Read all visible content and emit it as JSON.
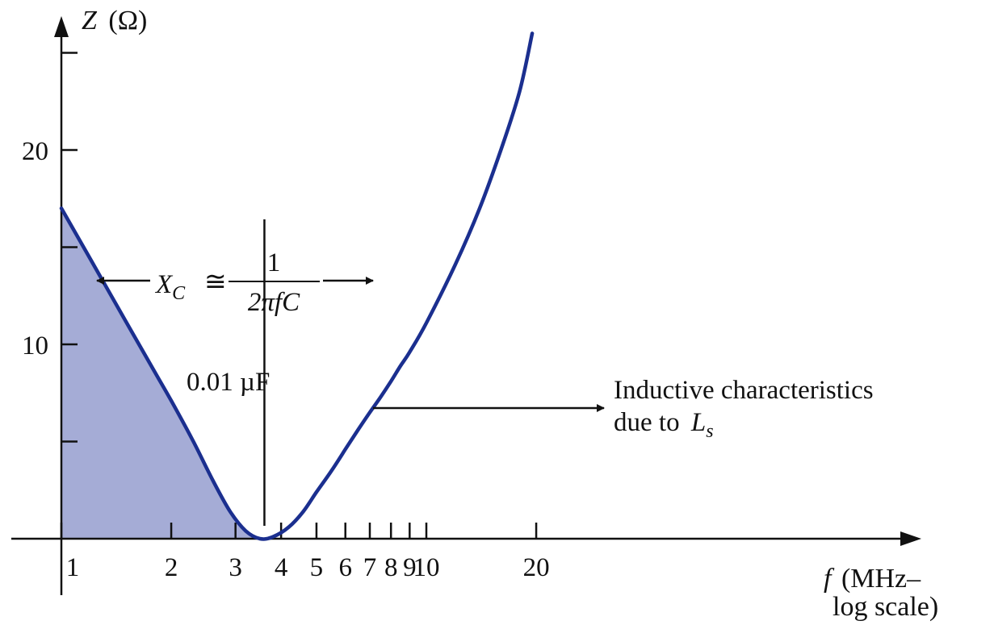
{
  "chart_data": {
    "type": "line",
    "title": "",
    "xlabel": "f (MHz–log scale)",
    "xlabel_parts": {
      "symbol": "f",
      "rest_line1": "(MHz–",
      "rest_line2": "log scale)"
    },
    "ylabel": "Z (Ω)",
    "ylabel_parts": {
      "symbol": "Z",
      "unit": "(Ω)"
    },
    "x_scale": "log",
    "xlim": [
      1,
      20
    ],
    "ylim": [
      0,
      26
    ],
    "x_ticks": [
      1,
      2,
      3,
      4,
      5,
      6,
      7,
      8,
      9,
      10,
      20
    ],
    "x_tick_labels": [
      "1",
      "2",
      "3",
      "4",
      "5",
      "6",
      "7",
      "8",
      "9",
      "10",
      "20"
    ],
    "y_ticks": [
      5,
      10,
      15,
      20,
      25
    ],
    "y_tick_labels": [
      "10",
      "20"
    ],
    "y_labeled_ticks": [
      10,
      20
    ],
    "grid": false,
    "series": [
      {
        "name": "0.01 µF",
        "color": "#1b2f8f",
        "x": [
          1.0,
          1.2,
          1.5,
          1.8,
          2.0,
          2.3,
          2.6,
          2.9,
          3.2,
          3.5,
          3.8,
          4.2,
          4.6,
          5.0,
          5.5,
          6.0,
          6.5,
          7.0,
          7.5,
          8.0,
          8.5,
          9.0,
          10,
          12,
          14,
          16,
          18,
          19.5
        ],
        "y": [
          17.0,
          14.4,
          11.2,
          8.6,
          7.1,
          5.0,
          3.0,
          1.4,
          0.4,
          0.0,
          0.1,
          0.6,
          1.4,
          2.4,
          3.5,
          4.6,
          5.6,
          6.5,
          7.3,
          8.1,
          8.9,
          9.6,
          11.1,
          14.1,
          17.0,
          20.0,
          23.0,
          26.0
        ],
        "fill_under_until_x": 3.6,
        "fill_color": "#a5acd6"
      }
    ],
    "marker_line_x": 3.6,
    "annotations": {
      "capacitor": "0.01 µF",
      "xc_lhs": "X",
      "xc_sub": "C",
      "xc_approx": "≅",
      "xc_num": "1",
      "xc_den": "2πfC",
      "inductive_line1": "Inductive characteristics",
      "inductive_line2_prefix": "due to ",
      "inductive_symbol": "L",
      "inductive_sub": "s"
    },
    "colors": {
      "curve": "#1b2f8f",
      "fill": "#a5acd6",
      "ink": "#111111"
    }
  }
}
